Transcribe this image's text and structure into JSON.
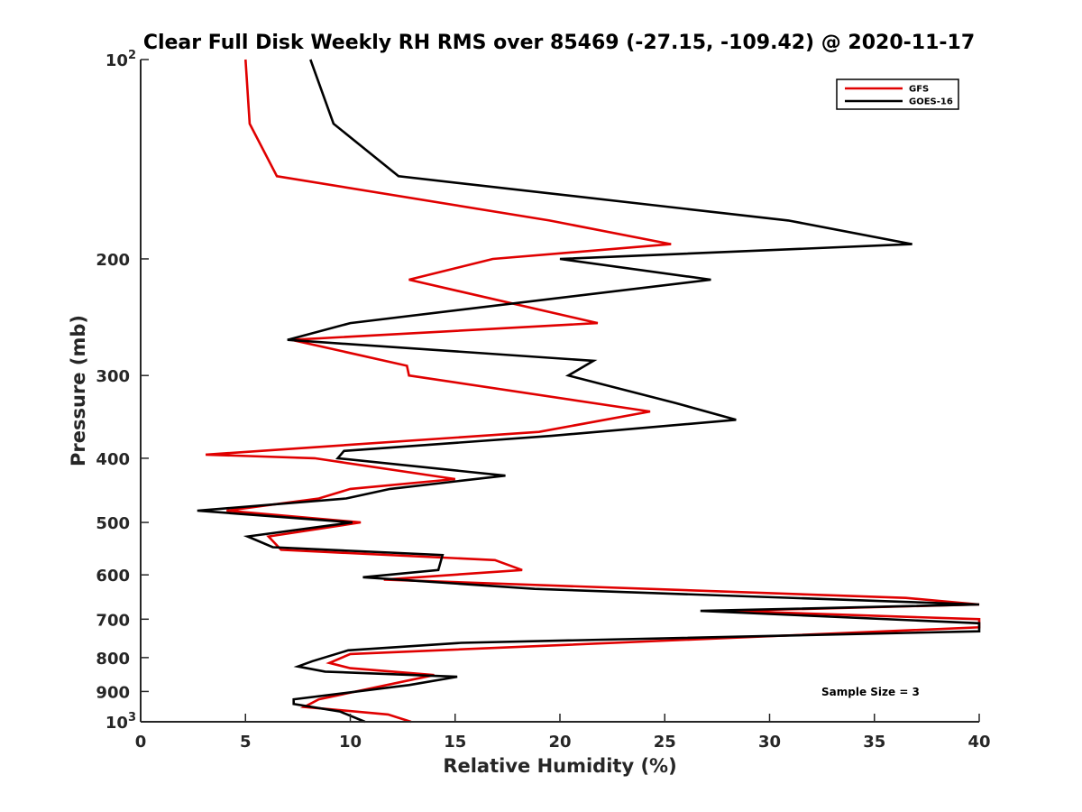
{
  "chart_data": {
    "type": "line",
    "title": "Clear Full Disk Weekly RH RMS over 85469 (-27.15, -109.42) @ 2020-11-17",
    "xlabel": "Relative Humidity (%)",
    "ylabel": "Pressure (mb)",
    "xlim": [
      0,
      40
    ],
    "ylim": [
      100,
      1000
    ],
    "y_scale": "log",
    "y_reversed": true,
    "x_ticks": [
      "0",
      "5",
      "10",
      "15",
      "20",
      "25",
      "30",
      "35",
      "40"
    ],
    "y_ticks": [
      {
        "value": 100,
        "base": "10",
        "exp": "2"
      },
      {
        "value": 200,
        "label": "200"
      },
      {
        "value": 300,
        "label": "300"
      },
      {
        "value": 400,
        "label": "400"
      },
      {
        "value": 500,
        "label": "500"
      },
      {
        "value": 600,
        "label": "600"
      },
      {
        "value": 700,
        "label": "700"
      },
      {
        "value": 800,
        "label": "800"
      },
      {
        "value": 900,
        "label": "900"
      },
      {
        "value": 1000,
        "base": "10",
        "exp": "3"
      }
    ],
    "legend_position": "top-right",
    "annotation": "Sample Size = 3",
    "series": [
      {
        "name": "GFS",
        "color": "#e00000",
        "points": [
          [
            5.0,
            100
          ],
          [
            5.2,
            125
          ],
          [
            6.5,
            150
          ],
          [
            19.5,
            175
          ],
          [
            25.3,
            190
          ],
          [
            16.8,
            200
          ],
          [
            12.8,
            215
          ],
          [
            21.8,
            250
          ],
          [
            7.2,
            265
          ],
          [
            12.7,
            290
          ],
          [
            12.8,
            300
          ],
          [
            24.3,
            340
          ],
          [
            19.0,
            365
          ],
          [
            3.1,
            395
          ],
          [
            8.3,
            400
          ],
          [
            15.0,
            430
          ],
          [
            10.0,
            445
          ],
          [
            8.5,
            460
          ],
          [
            4.1,
            480
          ],
          [
            10.5,
            500
          ],
          [
            6.1,
            525
          ],
          [
            6.7,
            550
          ],
          [
            16.9,
            570
          ],
          [
            18.2,
            590
          ],
          [
            11.6,
            610
          ],
          [
            36.5,
            650
          ],
          [
            40.0,
            665
          ],
          [
            28.0,
            680
          ],
          [
            40.0,
            700
          ],
          [
            40.0,
            720
          ],
          [
            10.0,
            790
          ],
          [
            9.0,
            815
          ],
          [
            10.0,
            830
          ],
          [
            14.0,
            850
          ],
          [
            8.5,
            925
          ],
          [
            7.8,
            950
          ],
          [
            11.8,
            975
          ],
          [
            12.9,
            1000
          ]
        ]
      },
      {
        "name": "GOES-16",
        "color": "#000000",
        "points": [
          [
            8.1,
            100
          ],
          [
            9.2,
            125
          ],
          [
            12.3,
            150
          ],
          [
            30.9,
            175
          ],
          [
            36.8,
            190
          ],
          [
            20.0,
            200
          ],
          [
            27.2,
            215
          ],
          [
            10.0,
            250
          ],
          [
            7.0,
            265
          ],
          [
            21.6,
            285
          ],
          [
            20.4,
            300
          ],
          [
            25.5,
            330
          ],
          [
            28.4,
            350
          ],
          [
            19.6,
            370
          ],
          [
            9.7,
            390
          ],
          [
            9.4,
            400
          ],
          [
            17.4,
            425
          ],
          [
            11.9,
            445
          ],
          [
            9.8,
            460
          ],
          [
            2.7,
            480
          ],
          [
            10.1,
            500
          ],
          [
            5.1,
            525
          ],
          [
            6.3,
            545
          ],
          [
            14.4,
            560
          ],
          [
            14.2,
            590
          ],
          [
            10.6,
            605
          ],
          [
            18.8,
            630
          ],
          [
            40.0,
            665
          ],
          [
            26.7,
            680
          ],
          [
            40.0,
            710
          ],
          [
            40.0,
            730
          ],
          [
            15.3,
            760
          ],
          [
            9.9,
            780
          ],
          [
            8.2,
            810
          ],
          [
            7.5,
            825
          ],
          [
            8.8,
            840
          ],
          [
            15.1,
            855
          ],
          [
            12.8,
            880
          ],
          [
            7.3,
            925
          ],
          [
            7.3,
            940
          ],
          [
            9.5,
            965
          ],
          [
            10.7,
            1000
          ]
        ]
      }
    ]
  }
}
